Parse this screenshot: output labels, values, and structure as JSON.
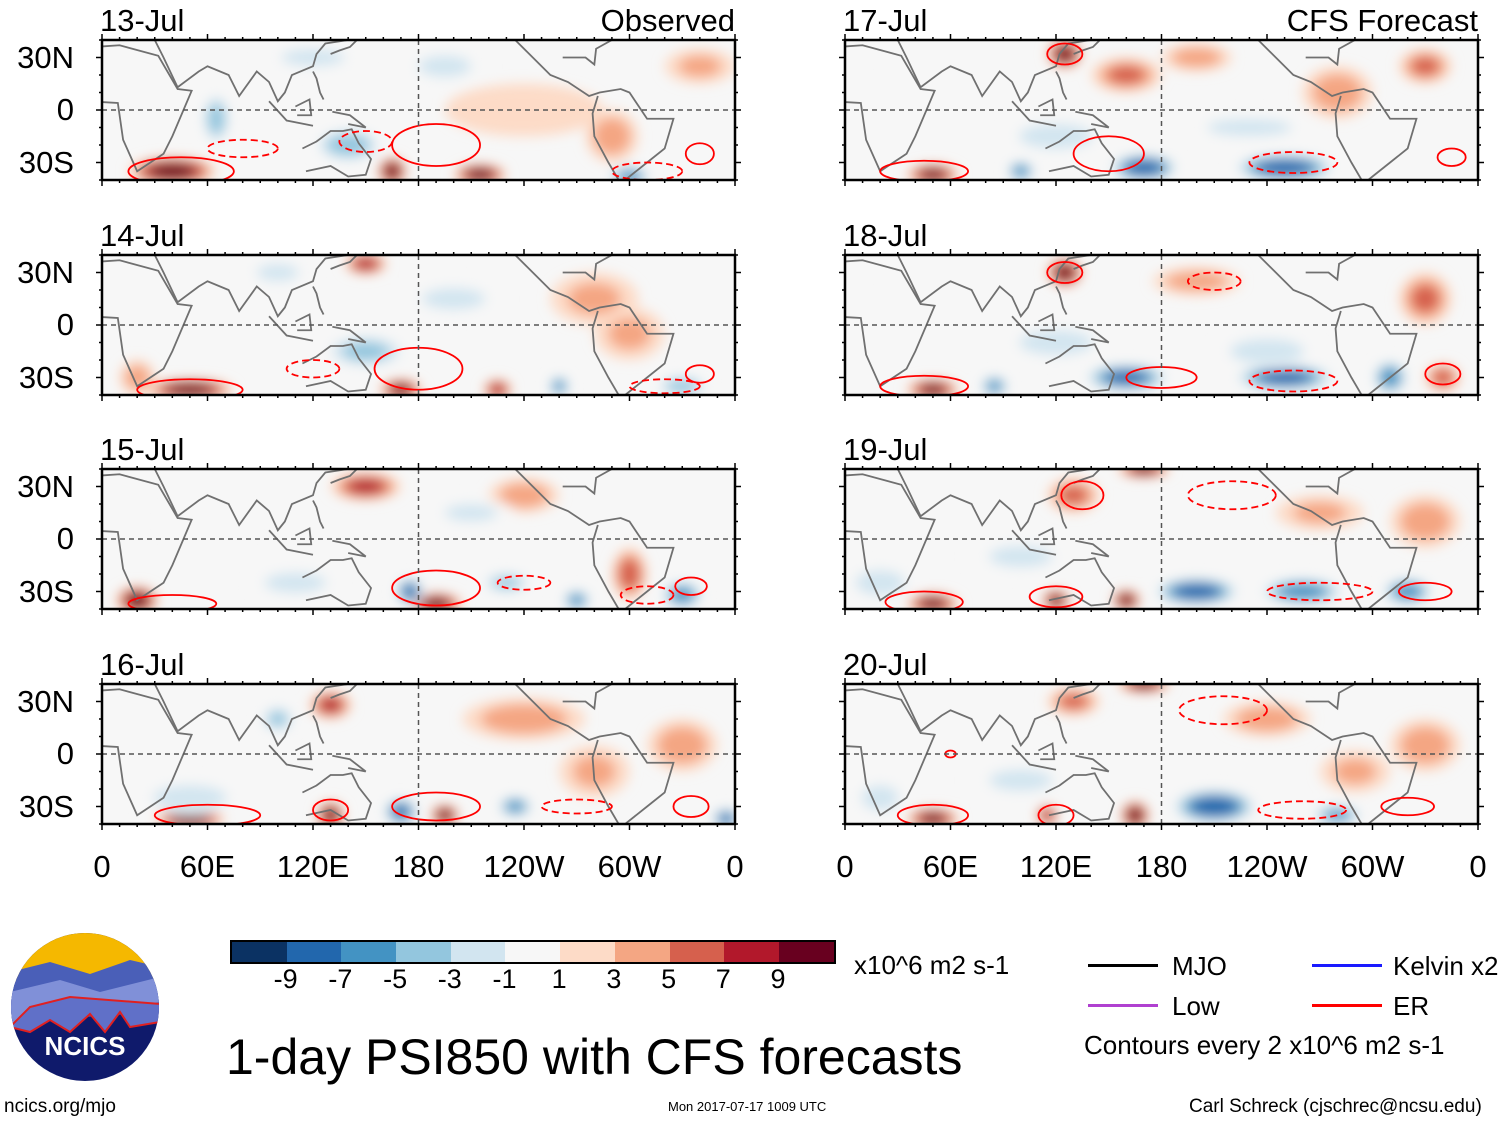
{
  "figure_title": "1-day PSI850 with CFS forecasts",
  "left_header": "Observed",
  "right_header": "CFS Forecast",
  "lat_labels": [
    "30N",
    "0",
    "30S"
  ],
  "lon_labels": [
    "0",
    "60E",
    "120E",
    "180",
    "120W",
    "60W",
    "0"
  ],
  "units": "x10^6 m2 s-1",
  "colorbar": {
    "colors": [
      "#0b3263",
      "#2267ad",
      "#4393c3",
      "#93c6de",
      "#d2e5f0",
      "#f7f7f7",
      "#fddbc7",
      "#f4a683",
      "#d6604d",
      "#b2182b",
      "#68001f"
    ],
    "labels": [
      "-9",
      "-7",
      "-5",
      "-3",
      "-1",
      "1",
      "3",
      "5",
      "7",
      "9"
    ]
  },
  "legend": {
    "items": [
      {
        "label": "MJO",
        "color": "#000000"
      },
      {
        "label": "Kelvin x2",
        "color": "#1a1aff"
      },
      {
        "label": "Low",
        "color": "#b040d0"
      },
      {
        "label": "ER",
        "color": "#ff0000"
      }
    ],
    "note": "Contours every 2 x10^6 m2 s-1"
  },
  "logo": {
    "text": "NCICS"
  },
  "footer": {
    "left": "ncics.org/mjo",
    "center": "Mon 2017-07-17 1009 UTC",
    "right": "Carl Schreck (cjschrec@ncsu.edu)"
  },
  "panels": [
    {
      "date": "13-Jul",
      "anoms": [
        [
          40,
          -35,
          10,
          25,
          8
        ],
        [
          165,
          -35,
          10,
          8,
          8
        ],
        [
          215,
          -37,
          10,
          15,
          6
        ],
        [
          65,
          -5,
          -6,
          8,
          15
        ],
        [
          140,
          -20,
          -6,
          20,
          10
        ],
        [
          300,
          -38,
          -8,
          12,
          6
        ],
        [
          240,
          0,
          2,
          45,
          15
        ],
        [
          290,
          -15,
          4,
          15,
          15
        ],
        [
          120,
          30,
          -3,
          30,
          8
        ],
        [
          195,
          25,
          -3,
          25,
          10
        ],
        [
          15,
          15,
          -2,
          25,
          15
        ],
        [
          340,
          25,
          3,
          20,
          10
        ]
      ],
      "contours": [
        [
          45,
          -35,
          30,
          8,
          0
        ],
        [
          80,
          -22,
          20,
          5,
          1
        ],
        [
          150,
          -18,
          15,
          6,
          1
        ],
        [
          190,
          -20,
          25,
          12,
          0
        ],
        [
          340,
          -25,
          8,
          6,
          0
        ],
        [
          310,
          -35,
          20,
          5,
          1
        ]
      ]
    },
    {
      "date": "14-Jul",
      "anoms": [
        [
          50,
          -37,
          10,
          25,
          6
        ],
        [
          170,
          -37,
          9,
          12,
          6
        ],
        [
          225,
          -37,
          8,
          8,
          6
        ],
        [
          150,
          -15,
          -5,
          25,
          10
        ],
        [
          260,
          -35,
          -8,
          6,
          6
        ],
        [
          330,
          -35,
          -6,
          15,
          6
        ],
        [
          150,
          35,
          8,
          12,
          6
        ],
        [
          280,
          15,
          3,
          25,
          15
        ],
        [
          100,
          30,
          -3,
          20,
          8
        ],
        [
          200,
          15,
          -3,
          30,
          10
        ],
        [
          20,
          -30,
          4,
          10,
          10
        ],
        [
          300,
          -5,
          3,
          20,
          15
        ]
      ],
      "contours": [
        [
          50,
          -37,
          30,
          6,
          0
        ],
        [
          120,
          -25,
          15,
          5,
          1
        ],
        [
          180,
          -25,
          25,
          12,
          0
        ],
        [
          340,
          -28,
          8,
          5,
          0
        ],
        [
          320,
          -35,
          20,
          4,
          1
        ]
      ]
    },
    {
      "date": "15-Jul",
      "anoms": [
        [
          20,
          -35,
          10,
          12,
          8
        ],
        [
          190,
          -37,
          10,
          15,
          6
        ],
        [
          175,
          -30,
          -9,
          8,
          8
        ],
        [
          270,
          -35,
          -8,
          8,
          6
        ],
        [
          330,
          -32,
          -8,
          12,
          8
        ],
        [
          150,
          30,
          7,
          20,
          8
        ],
        [
          240,
          25,
          4,
          20,
          10
        ],
        [
          110,
          -25,
          -4,
          25,
          8
        ],
        [
          300,
          -20,
          6,
          10,
          15
        ],
        [
          60,
          10,
          -2,
          25,
          15
        ],
        [
          230,
          -25,
          -5,
          15,
          6
        ],
        [
          210,
          15,
          -3,
          25,
          8
        ]
      ],
      "contours": [
        [
          40,
          -37,
          25,
          5,
          0
        ],
        [
          190,
          -28,
          25,
          10,
          0
        ],
        [
          240,
          -25,
          15,
          4,
          1
        ],
        [
          335,
          -27,
          9,
          5,
          0
        ],
        [
          310,
          -32,
          15,
          5,
          1
        ]
      ]
    },
    {
      "date": "16-Jul",
      "anoms": [
        [
          50,
          -37,
          10,
          20,
          6
        ],
        [
          130,
          -35,
          9,
          8,
          8
        ],
        [
          170,
          -33,
          -9,
          10,
          8
        ],
        [
          235,
          -30,
          -8,
          10,
          6
        ],
        [
          195,
          -35,
          10,
          8,
          6
        ],
        [
          355,
          -37,
          -9,
          8,
          6
        ],
        [
          130,
          28,
          7,
          12,
          8
        ],
        [
          100,
          20,
          -5,
          10,
          8
        ],
        [
          240,
          20,
          4,
          35,
          12
        ],
        [
          50,
          -25,
          -4,
          30,
          10
        ],
        [
          330,
          5,
          4,
          20,
          15
        ],
        [
          280,
          -10,
          3,
          20,
          15
        ]
      ],
      "contours": [
        [
          60,
          -35,
          30,
          6,
          0
        ],
        [
          130,
          -32,
          10,
          6,
          0
        ],
        [
          190,
          -30,
          25,
          8,
          0
        ],
        [
          335,
          -30,
          10,
          6,
          0
        ],
        [
          270,
          -30,
          20,
          4,
          1
        ]
      ]
    },
    {
      "date": "17-Jul",
      "anoms": [
        [
          125,
          32,
          10,
          10,
          8
        ],
        [
          160,
          20,
          5,
          20,
          10
        ],
        [
          50,
          -37,
          9,
          15,
          6
        ],
        [
          100,
          -35,
          -8,
          8,
          6
        ],
        [
          170,
          -33,
          -10,
          20,
          8
        ],
        [
          250,
          -33,
          -10,
          30,
          8
        ],
        [
          120,
          -15,
          -4,
          30,
          10
        ],
        [
          230,
          -10,
          -3,
          40,
          8
        ],
        [
          280,
          10,
          4,
          20,
          15
        ],
        [
          200,
          30,
          4,
          20,
          8
        ],
        [
          330,
          25,
          5,
          15,
          10
        ],
        [
          20,
          0,
          -2,
          20,
          15
        ]
      ],
      "contours": [
        [
          45,
          -35,
          25,
          6,
          0
        ],
        [
          125,
          32,
          10,
          6,
          0
        ],
        [
          150,
          -25,
          20,
          10,
          0
        ],
        [
          255,
          -30,
          25,
          6,
          1
        ],
        [
          345,
          -27,
          8,
          5,
          0
        ]
      ]
    },
    {
      "date": "18-Jul",
      "anoms": [
        [
          125,
          30,
          10,
          10,
          8
        ],
        [
          50,
          -37,
          9,
          15,
          6
        ],
        [
          85,
          -35,
          -8,
          8,
          6
        ],
        [
          160,
          -30,
          -9,
          25,
          8
        ],
        [
          250,
          -30,
          -9,
          30,
          8
        ],
        [
          310,
          -30,
          -8,
          10,
          10
        ],
        [
          120,
          -10,
          -4,
          30,
          10
        ],
        [
          240,
          -15,
          -4,
          30,
          10
        ],
        [
          200,
          25,
          4,
          25,
          8
        ],
        [
          330,
          15,
          5,
          15,
          15
        ],
        [
          340,
          -30,
          6,
          10,
          8
        ],
        [
          20,
          0,
          -2,
          20,
          15
        ]
      ],
      "contours": [
        [
          45,
          -35,
          25,
          6,
          0
        ],
        [
          125,
          30,
          10,
          6,
          0
        ],
        [
          180,
          -30,
          20,
          6,
          0
        ],
        [
          255,
          -32,
          25,
          6,
          1
        ],
        [
          340,
          -28,
          10,
          6,
          0
        ],
        [
          210,
          25,
          15,
          5,
          1
        ]
      ]
    },
    {
      "date": "19-Jul",
      "anoms": [
        [
          170,
          40,
          9,
          15,
          5
        ],
        [
          130,
          25,
          5,
          15,
          10
        ],
        [
          50,
          -37,
          9,
          15,
          6
        ],
        [
          120,
          -35,
          9,
          8,
          6
        ],
        [
          160,
          -35,
          10,
          8,
          6
        ],
        [
          200,
          -30,
          -10,
          25,
          8
        ],
        [
          260,
          -30,
          -8,
          25,
          8
        ],
        [
          320,
          -30,
          -8,
          15,
          8
        ],
        [
          100,
          -10,
          -3,
          30,
          10
        ],
        [
          20,
          -25,
          -4,
          20,
          10
        ],
        [
          330,
          10,
          4,
          20,
          15
        ],
        [
          270,
          15,
          3,
          25,
          10
        ]
      ],
      "contours": [
        [
          45,
          -36,
          22,
          6,
          0
        ],
        [
          120,
          -33,
          15,
          6,
          0
        ],
        [
          135,
          25,
          12,
          8,
          0
        ],
        [
          220,
          25,
          25,
          8,
          1
        ],
        [
          270,
          -30,
          30,
          5,
          1
        ],
        [
          330,
          -30,
          15,
          5,
          0
        ]
      ]
    },
    {
      "date": "20-Jul",
      "anoms": [
        [
          170,
          40,
          9,
          15,
          5
        ],
        [
          130,
          30,
          5,
          15,
          8
        ],
        [
          50,
          -37,
          9,
          15,
          6
        ],
        [
          115,
          -35,
          8,
          6,
          6
        ],
        [
          165,
          -35,
          10,
          8,
          8
        ],
        [
          210,
          -30,
          -10,
          25,
          10
        ],
        [
          280,
          -35,
          -7,
          15,
          6
        ],
        [
          100,
          -15,
          -3,
          30,
          10
        ],
        [
          20,
          -25,
          -4,
          15,
          10
        ],
        [
          240,
          20,
          4,
          25,
          10
        ],
        [
          330,
          5,
          4,
          20,
          15
        ],
        [
          290,
          -10,
          3,
          20,
          12
        ]
      ],
      "contours": [
        [
          50,
          -35,
          20,
          6,
          0
        ],
        [
          120,
          -35,
          10,
          6,
          0
        ],
        [
          215,
          25,
          25,
          8,
          1
        ],
        [
          260,
          -32,
          25,
          5,
          1
        ],
        [
          320,
          -30,
          15,
          5,
          0
        ],
        [
          60,
          0,
          3,
          2,
          0
        ]
      ]
    }
  ]
}
